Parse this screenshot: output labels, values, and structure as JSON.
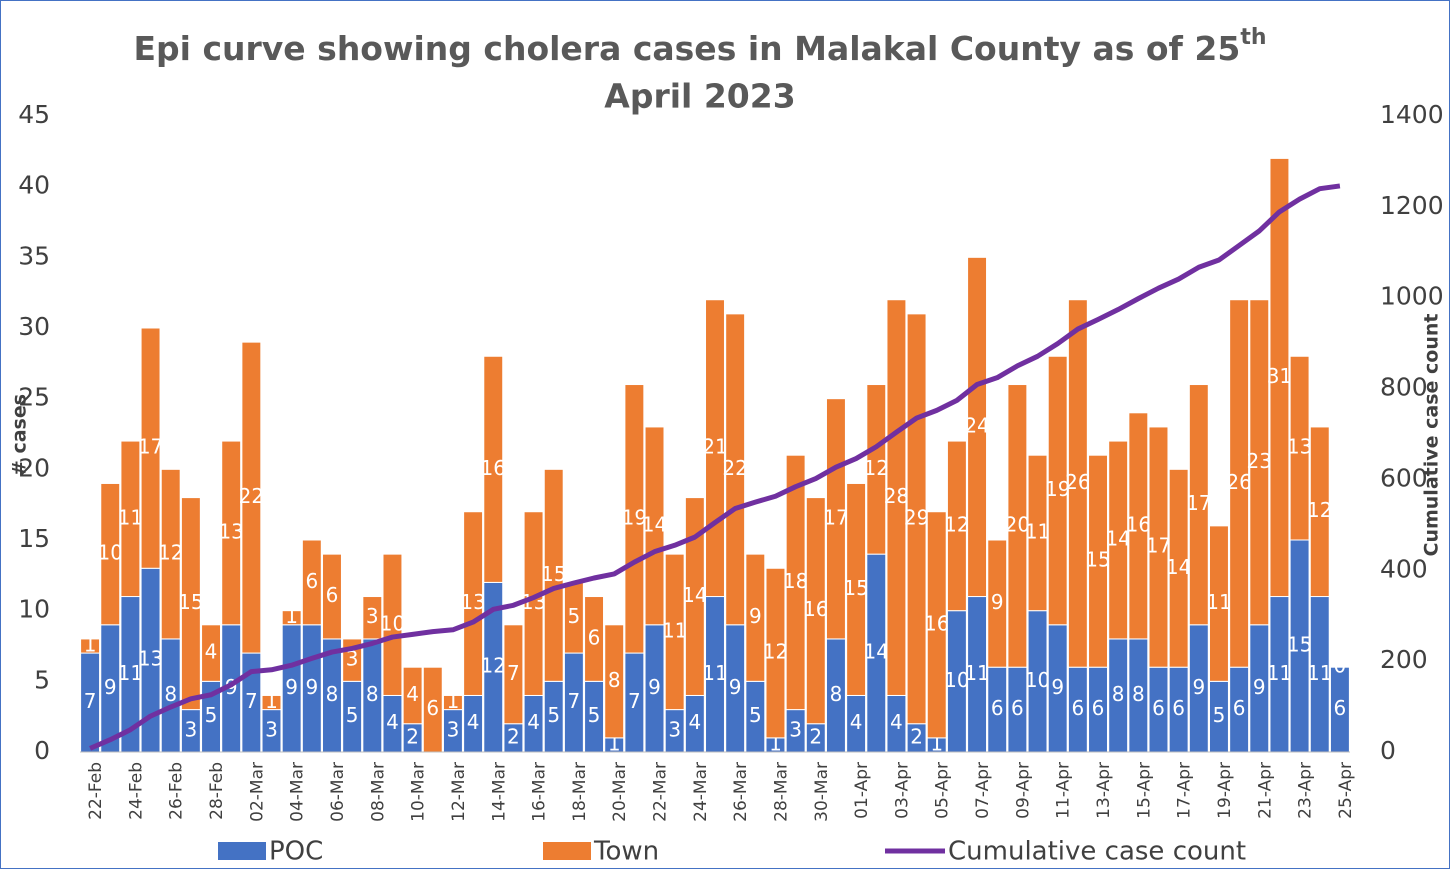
{
  "chart_data": {
    "type": "stacked_bar_line",
    "title": [
      "Epi curve showing cholera cases in Malakal County as of 25",
      "th",
      "April 2023"
    ],
    "ylabel": "# cases",
    "y2label": "Cumulative case count",
    "categories": [
      "22-Feb",
      null,
      "24-Feb",
      null,
      "26-Feb",
      null,
      "28-Feb",
      null,
      "02-Mar",
      null,
      "04-Mar",
      null,
      "06-Mar",
      null,
      "08-Mar",
      null,
      "10-Mar",
      null,
      "12-Mar",
      null,
      "14-Mar",
      null,
      "16-Mar",
      null,
      "18-Mar",
      null,
      "20-Mar",
      null,
      "22-Mar",
      null,
      "24-Mar",
      null,
      "26-Mar",
      null,
      "28-Mar",
      null,
      "30-Mar",
      null,
      "01-Apr",
      null,
      "03-Apr",
      null,
      "05-Apr",
      null,
      "07-Apr",
      null,
      "09-Apr",
      null,
      "11-Apr",
      null,
      "13-Apr",
      null,
      "15-Apr",
      null,
      "17-Apr",
      null,
      "19-Apr",
      null,
      "21-Apr",
      null,
      "23-Apr",
      null,
      "25-Apr"
    ],
    "series": [
      {
        "name": "POC",
        "color": "#4472c4",
        "values": [
          7,
          9,
          11,
          13,
          8,
          3,
          5,
          9,
          7,
          3,
          9,
          9,
          8,
          5,
          8,
          4,
          2,
          0,
          3,
          4,
          12,
          2,
          4,
          5,
          7,
          5,
          1,
          7,
          9,
          3,
          4,
          11,
          9,
          5,
          1,
          3,
          2,
          8,
          4,
          14,
          4,
          2,
          1,
          10,
          11,
          6,
          6,
          10,
          9,
          6,
          6,
          8,
          8,
          6,
          6,
          9,
          5,
          6,
          9,
          11,
          15,
          11,
          6
        ]
      },
      {
        "name": "Town",
        "color": "#ed7d31",
        "values": [
          1,
          10,
          11,
          17,
          12,
          15,
          4,
          13,
          22,
          1,
          1,
          6,
          6,
          3,
          3,
          10,
          4,
          6,
          1,
          13,
          16,
          7,
          13,
          15,
          5,
          6,
          8,
          19,
          14,
          11,
          14,
          21,
          22,
          9,
          12,
          18,
          16,
          17,
          15,
          12,
          28,
          29,
          16,
          12,
          24,
          9,
          20,
          11,
          19,
          26,
          15,
          14,
          16,
          17,
          14,
          17,
          11,
          26,
          23,
          31,
          13,
          12,
          0
        ]
      },
      {
        "name": "Cumulative case count",
        "color": "#7030a0",
        "axis": "y2",
        "values": [
          8,
          27,
          49,
          79,
          99,
          117,
          126,
          148,
          177,
          181,
          191,
          206,
          220,
          228,
          239,
          253,
          259,
          265,
          269,
          286,
          314,
          323,
          340,
          360,
          372,
          383,
          392,
          418,
          441,
          455,
          473,
          505,
          536,
          550,
          563,
          584,
          602,
          627,
          646,
          672,
          704,
          735,
          752,
          774,
          809,
          824,
          850,
          871,
          899,
          931,
          952,
          974,
          998,
          1021,
          1041,
          1067,
          1083,
          1115,
          1147,
          1189,
          1217,
          1240,
          1246
        ]
      }
    ],
    "ylim": [
      0,
      45
    ],
    "yticks": [
      0,
      5,
      10,
      15,
      20,
      25,
      30,
      35,
      40,
      45
    ],
    "y2lim": [
      0,
      1400
    ],
    "y2ticks": [
      0,
      200,
      400,
      600,
      800,
      1000,
      1200,
      1400
    ],
    "grid": false,
    "legend": "bottom"
  }
}
